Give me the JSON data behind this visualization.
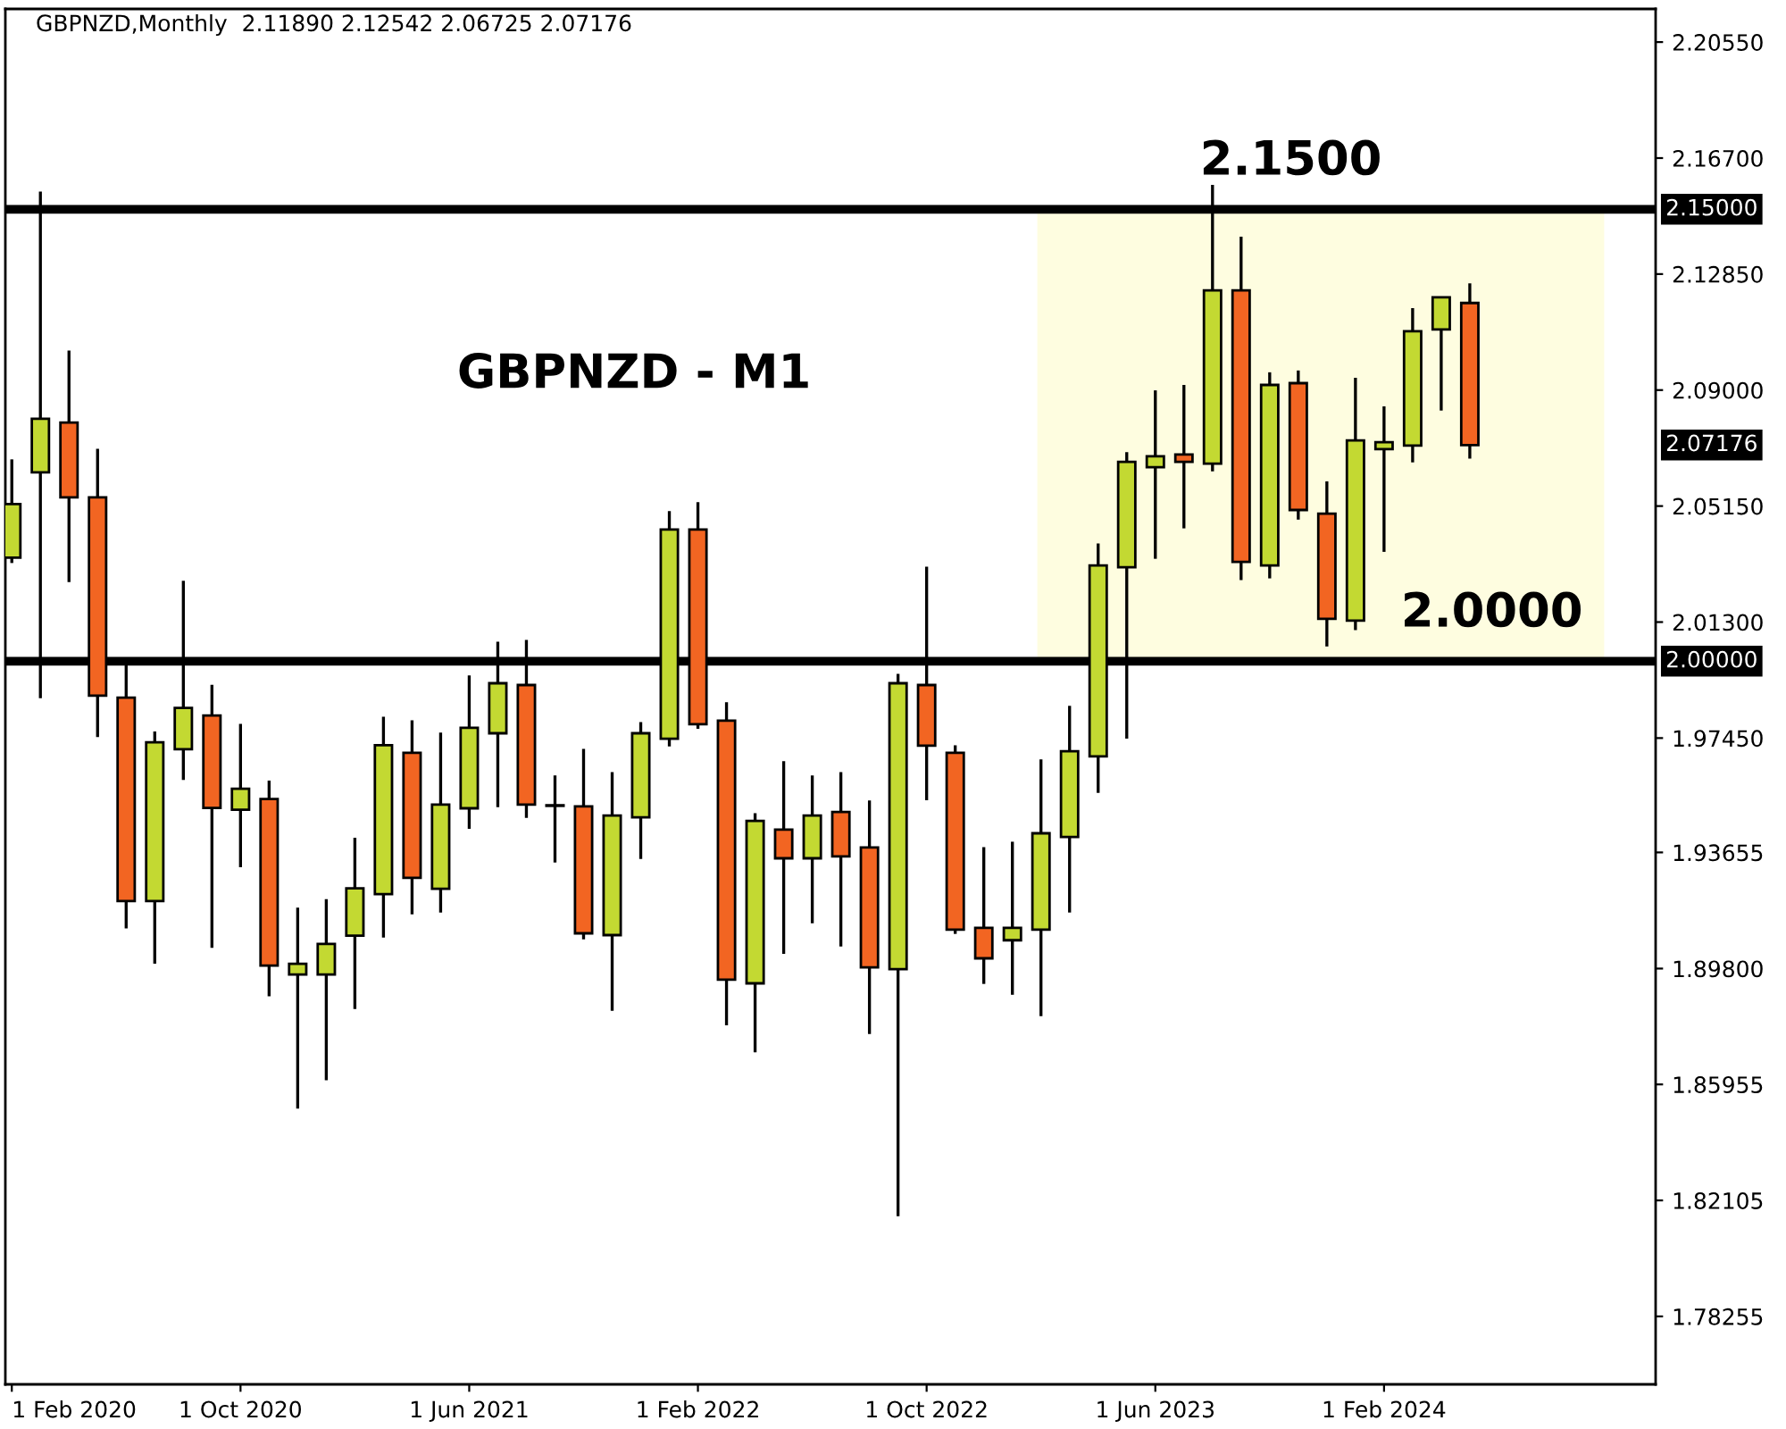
{
  "chart_data": {
    "type": "candlestick",
    "title": "GBPNZD,Monthly  2.11890 2.12542 2.06725 2.07176",
    "x": [
      "2020-02",
      "2020-03",
      "2020-04",
      "2020-05",
      "2020-06",
      "2020-07",
      "2020-08",
      "2020-09",
      "2020-10",
      "2020-11",
      "2020-12",
      "2021-01",
      "2021-02",
      "2021-03",
      "2021-04",
      "2021-05",
      "2021-06",
      "2021-07",
      "2021-08",
      "2021-09",
      "2021-10",
      "2021-11",
      "2021-12",
      "2022-01",
      "2022-02",
      "2022-03",
      "2022-04",
      "2022-05",
      "2022-06",
      "2022-07",
      "2022-08",
      "2022-09",
      "2022-10",
      "2022-11",
      "2022-12",
      "2023-01",
      "2023-02",
      "2023-03",
      "2023-04",
      "2023-05",
      "2023-06",
      "2023-07",
      "2023-08",
      "2023-09",
      "2023-10",
      "2023-11",
      "2023-12",
      "2024-01",
      "2024-02",
      "2024-03",
      "2024-04",
      "2024-05"
    ],
    "ohlc": [
      [
        2.0344,
        2.067,
        2.0326,
        2.0522
      ],
      [
        2.0627,
        2.1559,
        1.9877,
        2.0805
      ],
      [
        2.0792,
        2.1031,
        2.0263,
        2.0544
      ],
      [
        2.0544,
        2.0705,
        1.9748,
        1.9886
      ],
      [
        1.9879,
        1.9988,
        1.9113,
        1.9204
      ],
      [
        1.9204,
        1.9767,
        1.8996,
        1.9731
      ],
      [
        1.9708,
        2.0267,
        1.9606,
        1.9845
      ],
      [
        1.982,
        1.9922,
        1.9049,
        1.9513
      ],
      [
        1.9507,
        1.9792,
        1.9316,
        1.9577
      ],
      [
        1.9543,
        1.9604,
        1.8888,
        1.899
      ],
      [
        1.896,
        1.9182,
        1.8515,
        1.8996
      ],
      [
        1.896,
        1.921,
        1.8609,
        1.9062
      ],
      [
        1.9089,
        1.9414,
        1.8846,
        1.9246
      ],
      [
        1.9227,
        1.9816,
        1.9083,
        1.9721
      ],
      [
        1.9696,
        1.9804,
        1.916,
        1.9281
      ],
      [
        1.9245,
        1.9763,
        1.9166,
        1.9524
      ],
      [
        1.9512,
        1.9953,
        1.9444,
        1.9779
      ],
      [
        1.9761,
        2.0065,
        1.9516,
        1.9927
      ],
      [
        1.9921,
        2.0071,
        1.948,
        1.9524
      ],
      [
        1.9522,
        1.9621,
        1.9332,
        1.952
      ],
      [
        1.9518,
        1.9709,
        1.9077,
        1.9097
      ],
      [
        1.9091,
        1.9632,
        1.884,
        1.9488
      ],
      [
        1.9482,
        1.9798,
        1.9344,
        1.9761
      ],
      [
        1.9743,
        2.0498,
        1.9717,
        2.0437
      ],
      [
        2.0437,
        2.0528,
        1.9776,
        1.9791
      ],
      [
        1.9803,
        1.9864,
        1.8792,
        1.8943
      ],
      [
        1.8931,
        1.9496,
        1.8702,
        1.947
      ],
      [
        1.9441,
        1.9668,
        1.9029,
        1.9346
      ],
      [
        1.9346,
        1.9621,
        1.913,
        1.9488
      ],
      [
        1.95,
        1.9632,
        1.9053,
        1.9352
      ],
      [
        1.9382,
        1.9538,
        1.8763,
        1.8984
      ],
      [
        1.8978,
        1.9958,
        1.8158,
        1.9927
      ],
      [
        1.9921,
        2.0314,
        1.9539,
        1.972
      ],
      [
        1.9696,
        1.9721,
        1.9095,
        1.9109
      ],
      [
        1.9115,
        1.9383,
        1.8929,
        1.9014
      ],
      [
        1.9074,
        1.9401,
        1.8893,
        1.9115
      ],
      [
        1.9109,
        1.9674,
        1.8822,
        1.9429
      ],
      [
        1.9417,
        1.9852,
        1.9166,
        1.9701
      ],
      [
        1.9684,
        2.0391,
        1.9563,
        2.0318
      ],
      [
        2.0312,
        2.0694,
        1.9743,
        2.0662
      ],
      [
        2.0644,
        2.0899,
        2.034,
        2.068
      ],
      [
        2.0686,
        2.0917,
        2.0441,
        2.0662
      ],
      [
        2.0656,
        2.1581,
        2.063,
        2.1231
      ],
      [
        2.1231,
        2.1409,
        2.0269,
        2.033
      ],
      [
        2.0318,
        2.0959,
        2.0275,
        2.0917
      ],
      [
        2.0923,
        2.0965,
        2.047,
        2.0502
      ],
      [
        2.049,
        2.0597,
        2.0049,
        2.0141
      ],
      [
        2.0135,
        2.0941,
        2.0103,
        2.0733
      ],
      [
        2.0704,
        2.0846,
        2.0363,
        2.0727
      ],
      [
        2.0716,
        2.1172,
        2.066,
        2.1095
      ],
      [
        2.1101,
        2.1208,
        2.0832,
        2.1208
      ],
      [
        2.1189,
        2.12542,
        2.06725,
        2.07176
      ]
    ],
    "colors": [
      "#c3d932",
      "#c3d932",
      "#f26522",
      "#f26522",
      "#f26522",
      "#c3d932",
      "#c3d932",
      "#f26522",
      "#c3d932",
      "#f26522",
      "#c3d932",
      "#c3d932",
      "#c3d932",
      "#c3d932",
      "#f26522",
      "#c3d932",
      "#c3d932",
      "#c3d932",
      "#f26522",
      "#f26522",
      "#f26522",
      "#c3d932",
      "#c3d932",
      "#c3d932",
      "#f26522",
      "#f26522",
      "#c3d932",
      "#f26522",
      "#c3d932",
      "#f26522",
      "#f26522",
      "#c3d932",
      "#f26522",
      "#f26522",
      "#f26522",
      "#c3d932",
      "#c3d932",
      "#c3d932",
      "#c3d932",
      "#c3d932",
      "#c3d932",
      "#f26522",
      "#c3d932",
      "#f26522",
      "#c3d932",
      "#f26522",
      "#f26522",
      "#c3d932",
      "#c3d932",
      "#c3d932",
      "#c3d932",
      "#f26522"
    ],
    "xlim": [
      "2020-01-25",
      "2024-11-16"
    ],
    "xticks": [
      {
        "value": "2020-02",
        "label": "1 Feb 2020"
      },
      {
        "value": "2020-10",
        "label": "1 Oct 2020"
      },
      {
        "value": "2021-06",
        "label": "1 Jun 2021"
      },
      {
        "value": "2022-02",
        "label": "1 Feb 2022"
      },
      {
        "value": "2022-10",
        "label": "1 Oct 2022"
      },
      {
        "value": "2023-06",
        "label": "1 Jun 2023"
      },
      {
        "value": "2024-02",
        "label": "1 Feb 2024"
      }
    ],
    "ylim": [
      1.76,
      2.2165
    ],
    "yticks": [
      {
        "value": 2.2055,
        "label": "2.20550"
      },
      {
        "value": 2.167,
        "label": "2.16700"
      },
      {
        "value": 2.1285,
        "label": "2.12850"
      },
      {
        "value": 2.09,
        "label": "2.09000"
      },
      {
        "value": 2.0515,
        "label": "2.05150"
      },
      {
        "value": 2.013,
        "label": "2.01300"
      },
      {
        "value": 1.9745,
        "label": "1.97450"
      },
      {
        "value": 1.93655,
        "label": "1.93655"
      },
      {
        "value": 1.898,
        "label": "1.89800"
      },
      {
        "value": 1.85955,
        "label": "1.85955"
      },
      {
        "value": 1.82105,
        "label": "1.82105"
      },
      {
        "value": 1.78255,
        "label": "1.78255"
      }
    ],
    "ref_lines": [
      {
        "axis": "y",
        "value": 2.15,
        "label": "2.15000",
        "color": "#000000"
      },
      {
        "axis": "y",
        "value": 2.0,
        "label": "2.00000",
        "color": "#000000"
      }
    ],
    "bands": [
      {
        "axis": "x",
        "from": "2023-01-28",
        "to": "2024-09-22",
        "color": "#fefde0"
      }
    ],
    "annotations": [
      "GBPNZD - M1",
      {
        "text": "2.1500",
        "x": "2023-10-24",
        "y": 2.15
      },
      {
        "text": "2.0000",
        "x": "2024-05-25",
        "y": 2.0
      },
      "2.07176"
    ],
    "grid": false
  }
}
